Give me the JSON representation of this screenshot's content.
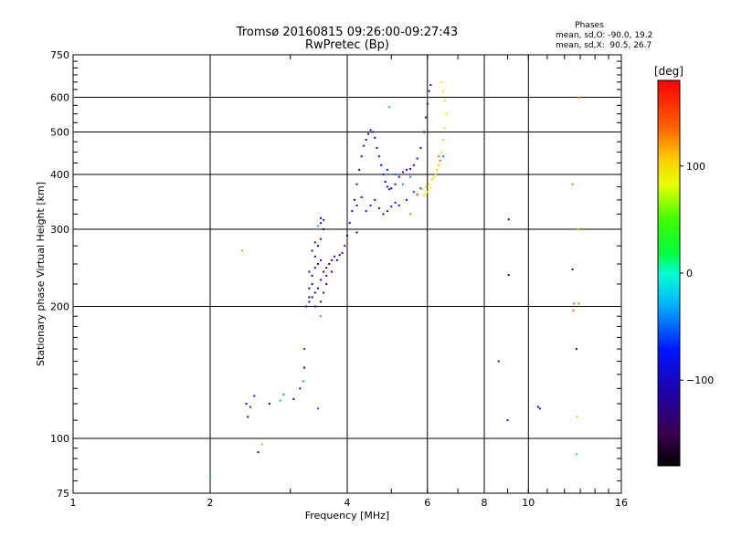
{
  "chart_data": {
    "type": "scatter",
    "title": "Tromsø 20160815 09:26:00-09:27:43",
    "subtitle": "RwPretec (Bp)",
    "xlabel": "Frequency [MHz]",
    "ylabel": "Stationary phase Virtual Height [km]",
    "xscale": "log",
    "yscale": "log",
    "xlim": [
      1,
      16
    ],
    "ylim": [
      75,
      750
    ],
    "xticks": [
      1,
      2,
      4,
      6,
      8,
      10,
      16
    ],
    "yticks": [
      75,
      100,
      200,
      300,
      400,
      500,
      600,
      750
    ],
    "grid": true,
    "legend_title": "Phases",
    "legend_lines": [
      "mean, sd,O: -90.0, 19.2",
      "mean, sd,X:  90.5, 26.7"
    ],
    "colorbar": {
      "label": "[deg]",
      "range": [
        -180,
        180
      ],
      "ticks": [
        -100,
        0,
        100
      ],
      "tick_labels": [
        "−100",
        "0",
        "100"
      ]
    },
    "series": [
      {
        "name": "O-mode low F region (blue/purple)",
        "points": [
          [
            3.25,
            200,
            -110
          ],
          [
            3.3,
            205,
            -115
          ],
          [
            3.35,
            210,
            -112
          ],
          [
            3.4,
            215,
            -118
          ],
          [
            3.45,
            220,
            -108
          ],
          [
            3.5,
            230,
            -115
          ],
          [
            3.3,
            220,
            -120
          ],
          [
            3.35,
            235,
            -105
          ],
          [
            3.4,
            245,
            -112
          ],
          [
            3.45,
            250,
            -118
          ],
          [
            3.5,
            255,
            -110
          ],
          [
            3.55,
            240,
            -114
          ],
          [
            3.6,
            245,
            -108
          ],
          [
            3.65,
            250,
            -116
          ],
          [
            3.7,
            255,
            -112
          ],
          [
            3.75,
            260,
            -105
          ],
          [
            3.8,
            255,
            -110
          ],
          [
            3.85,
            262,
            -118
          ],
          [
            3.9,
            265,
            -108
          ],
          [
            3.3,
            240,
            -112
          ],
          [
            3.4,
            260,
            -120
          ],
          [
            3.45,
            275,
            -110
          ],
          [
            3.5,
            285,
            -108
          ],
          [
            3.55,
            300,
            -115
          ],
          [
            3.3,
            210,
            -140
          ],
          [
            3.35,
            225,
            -135
          ],
          [
            3.4,
            200,
            -130
          ],
          [
            3.5,
            205,
            -138
          ],
          [
            3.55,
            215,
            -128
          ],
          [
            3.6,
            225,
            -132
          ],
          [
            3.5,
            310,
            -105
          ],
          [
            3.55,
            315,
            -100
          ],
          [
            3.35,
            268,
            -110
          ],
          [
            3.4,
            280,
            -115
          ],
          [
            3.6,
            235,
            -112
          ],
          [
            3.7,
            240,
            -110
          ]
        ]
      },
      {
        "name": "O-mode F2 trace (blue)",
        "points": [
          [
            3.95,
            275,
            -100
          ],
          [
            4.0,
            290,
            -105
          ],
          [
            4.05,
            310,
            -98
          ],
          [
            4.1,
            330,
            -102
          ],
          [
            4.15,
            350,
            -100
          ],
          [
            4.2,
            380,
            -96
          ],
          [
            4.25,
            410,
            -100
          ],
          [
            4.3,
            440,
            -98
          ],
          [
            4.35,
            465,
            -102
          ],
          [
            4.4,
            480,
            -100
          ],
          [
            4.45,
            495,
            -104
          ],
          [
            4.5,
            505,
            -98
          ],
          [
            4.55,
            500,
            -100
          ],
          [
            4.6,
            485,
            -102
          ],
          [
            4.65,
            460,
            -98
          ],
          [
            4.7,
            440,
            -100
          ],
          [
            4.75,
            420,
            -104
          ],
          [
            4.8,
            400,
            -98
          ],
          [
            4.85,
            385,
            -100
          ],
          [
            4.9,
            375,
            -102
          ],
          [
            4.95,
            370,
            -96
          ],
          [
            5.0,
            372,
            -100
          ],
          [
            5.1,
            380,
            -98
          ],
          [
            5.2,
            395,
            -100
          ],
          [
            5.3,
            405,
            -104
          ],
          [
            5.4,
            410,
            -98
          ],
          [
            5.5,
            412,
            -100
          ],
          [
            5.6,
            420,
            -102
          ],
          [
            5.7,
            435,
            -98
          ],
          [
            5.8,
            460,
            -100
          ],
          [
            5.9,
            500,
            -104
          ],
          [
            5.95,
            540,
            -98
          ],
          [
            6.0,
            580,
            -100
          ],
          [
            6.05,
            620,
            -102
          ],
          [
            6.1,
            640,
            -100
          ],
          [
            4.2,
            340,
            -80
          ],
          [
            4.3,
            355,
            -75
          ],
          [
            4.4,
            330,
            -85
          ],
          [
            4.5,
            340,
            -78
          ],
          [
            4.6,
            350,
            -82
          ],
          [
            4.7,
            335,
            -80
          ],
          [
            4.8,
            325,
            -76
          ],
          [
            4.9,
            330,
            -84
          ],
          [
            5.0,
            338,
            -80
          ],
          [
            5.1,
            345,
            -78
          ],
          [
            5.2,
            340,
            -82
          ],
          [
            5.4,
            350,
            -80
          ],
          [
            5.6,
            365,
            -60
          ],
          [
            5.8,
            372,
            -55
          ],
          [
            5.5,
            395,
            -45
          ],
          [
            5.3,
            380,
            -40
          ],
          [
            5.1,
            400,
            -50
          ],
          [
            4.9,
            410,
            -65
          ]
        ]
      },
      {
        "name": "X-mode trace (yellow/orange)",
        "points": [
          [
            5.85,
            370,
            95
          ],
          [
            5.95,
            375,
            100
          ],
          [
            6.05,
            380,
            98
          ],
          [
            6.15,
            390,
            102
          ],
          [
            6.25,
            400,
            96
          ],
          [
            6.35,
            420,
            100
          ],
          [
            6.45,
            450,
            104
          ],
          [
            6.5,
            480,
            98
          ],
          [
            6.55,
            510,
            100
          ],
          [
            6.6,
            550,
            102
          ],
          [
            6.55,
            590,
            95
          ],
          [
            6.5,
            620,
            100
          ],
          [
            6.45,
            650,
            98
          ],
          [
            6.35,
            440,
            130
          ],
          [
            6.4,
            430,
            140
          ],
          [
            6.3,
            410,
            110
          ],
          [
            6.2,
            395,
            105
          ],
          [
            6.0,
            365,
            90
          ],
          [
            5.9,
            360,
            88
          ],
          [
            6.1,
            372,
            92
          ]
        ]
      },
      {
        "name": "Scattered points",
        "points": [
          [
            2.0,
            82,
            -20
          ],
          [
            2.35,
            268,
            120
          ],
          [
            2.42,
            112,
            -140
          ],
          [
            2.4,
            120,
            -90
          ],
          [
            2.45,
            118,
            -60
          ],
          [
            2.5,
            125,
            -70
          ],
          [
            2.55,
            93,
            -160
          ],
          [
            2.6,
            97,
            120
          ],
          [
            2.7,
            120,
            -100
          ],
          [
            2.85,
            122,
            -30
          ],
          [
            2.9,
            126,
            -40
          ],
          [
            3.05,
            123,
            -110
          ],
          [
            3.15,
            130,
            -90
          ],
          [
            3.2,
            135,
            -40
          ],
          [
            3.22,
            145,
            -110
          ],
          [
            3.22,
            160,
            -60
          ],
          [
            3.45,
            117,
            -50
          ],
          [
            3.5,
            190,
            -30
          ],
          [
            3.5,
            318,
            -90
          ],
          [
            3.45,
            305,
            -20
          ],
          [
            4.2,
            295,
            -130
          ],
          [
            4.95,
            570,
            -20
          ],
          [
            5.7,
            360,
            150
          ],
          [
            5.5,
            325,
            130
          ],
          [
            6.5,
            440,
            -40
          ],
          [
            8.6,
            150,
            -150
          ],
          [
            9.0,
            110,
            -80
          ],
          [
            9.05,
            236,
            -130
          ],
          [
            9.05,
            316,
            -120
          ],
          [
            10.5,
            118,
            -100
          ],
          [
            10.6,
            117,
            -110
          ],
          [
            12.5,
            380,
            130
          ],
          [
            12.5,
            243,
            -130
          ],
          [
            12.6,
            203,
            150
          ],
          [
            12.55,
            196,
            140
          ],
          [
            12.75,
            160,
            -120
          ],
          [
            12.8,
            112,
            110
          ],
          [
            12.75,
            92,
            20
          ],
          [
            12.85,
            300,
            110
          ],
          [
            12.9,
            598,
            120
          ],
          [
            12.9,
            203,
            130
          ]
        ]
      }
    ]
  }
}
